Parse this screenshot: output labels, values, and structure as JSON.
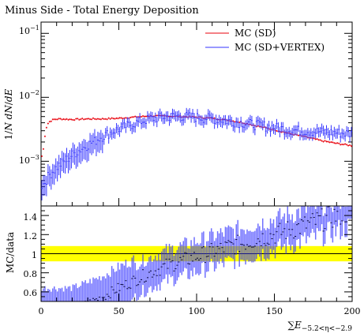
{
  "chart_data": [
    {
      "type": "scatter",
      "title": "Minus Side - Total Energy Deposition",
      "ylabel_parts": [
        "1/",
        "N",
        " ",
        "dN",
        "/",
        "dE"
      ],
      "yscale": "log",
      "ylim": [
        0.0002,
        0.15
      ],
      "xlim": [
        0,
        200
      ],
      "y_tick_labels": [
        "10",
        "10",
        "10"
      ],
      "y_tick_exponents": [
        "−1",
        "−2",
        "−3"
      ],
      "y_tick_values": [
        0.1,
        0.01,
        0.001
      ],
      "legend_position": "top-right",
      "series": [
        {
          "name": "MC (SD)",
          "color": "#e8000b",
          "points": [
            [
              1,
              0.0012
            ],
            [
              2,
              0.0019
            ],
            [
              3,
              0.0031
            ],
            [
              4,
              0.0037
            ],
            [
              5,
              0.0041
            ],
            [
              8,
              0.0045
            ],
            [
              12,
              0.0046
            ],
            [
              20,
              0.0045
            ],
            [
              30,
              0.0046
            ],
            [
              40,
              0.0046
            ],
            [
              50,
              0.0047
            ],
            [
              60,
              0.0049
            ],
            [
              70,
              0.0051
            ],
            [
              80,
              0.0051
            ],
            [
              90,
              0.005
            ],
            [
              100,
              0.0049
            ],
            [
              110,
              0.0047
            ],
            [
              120,
              0.0044
            ],
            [
              130,
              0.004
            ],
            [
              140,
              0.0035
            ],
            [
              150,
              0.0031
            ],
            [
              160,
              0.0027
            ],
            [
              170,
              0.0024
            ],
            [
              180,
              0.0021
            ],
            [
              190,
              0.0019
            ],
            [
              200,
              0.00175
            ]
          ]
        },
        {
          "name": "MC (SD+VERTEX)",
          "color": "#3333ff",
          "points": [
            [
              1,
              0.00042
            ],
            [
              3,
              0.0005
            ],
            [
              5,
              0.0006
            ],
            [
              10,
              0.0008
            ],
            [
              15,
              0.001
            ],
            [
              20,
              0.00125
            ],
            [
              25,
              0.0015
            ],
            [
              30,
              0.0018
            ],
            [
              35,
              0.0021
            ],
            [
              40,
              0.0025
            ],
            [
              50,
              0.0032
            ],
            [
              60,
              0.0039
            ],
            [
              70,
              0.0046
            ],
            [
              80,
              0.005
            ],
            [
              90,
              0.0051
            ],
            [
              100,
              0.0049
            ],
            [
              110,
              0.0047
            ],
            [
              120,
              0.0043
            ],
            [
              130,
              0.004
            ],
            [
              140,
              0.0037
            ],
            [
              150,
              0.0034
            ],
            [
              160,
              0.0031
            ],
            [
              170,
              0.003
            ],
            [
              180,
              0.0029
            ],
            [
              190,
              0.0028
            ],
            [
              200,
              0.0027
            ]
          ]
        }
      ]
    },
    {
      "type": "scatter",
      "ylabel": "MC/data",
      "xlabel_parts": [
        "∑",
        "E",
        "−5.2<η<−2.9"
      ],
      "xlim": [
        0,
        200
      ],
      "ylim": [
        0.5,
        1.5
      ],
      "x_tick_labels": [
        "0",
        "50",
        "100",
        "150",
        "200"
      ],
      "x_tick_values": [
        0,
        50,
        100,
        150,
        200
      ],
      "y_tick_labels": [
        "0.6",
        "0.8",
        "1",
        "1.2",
        "1.4"
      ],
      "y_tick_values": [
        0.6,
        0.8,
        1.0,
        1.2,
        1.4
      ],
      "band": {
        "low": 0.92,
        "high": 1.08,
        "color": "#ffff00"
      },
      "reference_line": 1.0,
      "series": [
        {
          "name": "MC (SD+VERTEX)",
          "color": "#3333ff",
          "points": [
            [
              20,
              0.42
            ],
            [
              30,
              0.48
            ],
            [
              40,
              0.55
            ],
            [
              50,
              0.64
            ],
            [
              60,
              0.72
            ],
            [
              70,
              0.8
            ],
            [
              80,
              0.87
            ],
            [
              90,
              0.92
            ],
            [
              100,
              0.97
            ],
            [
              110,
              1.02
            ],
            [
              120,
              1.07
            ],
            [
              130,
              1.11
            ],
            [
              140,
              1.16
            ],
            [
              150,
              1.2
            ],
            [
              160,
              1.25
            ],
            [
              170,
              1.3
            ],
            [
              180,
              1.35
            ],
            [
              190,
              1.4
            ],
            [
              200,
              1.45
            ]
          ]
        }
      ]
    }
  ]
}
